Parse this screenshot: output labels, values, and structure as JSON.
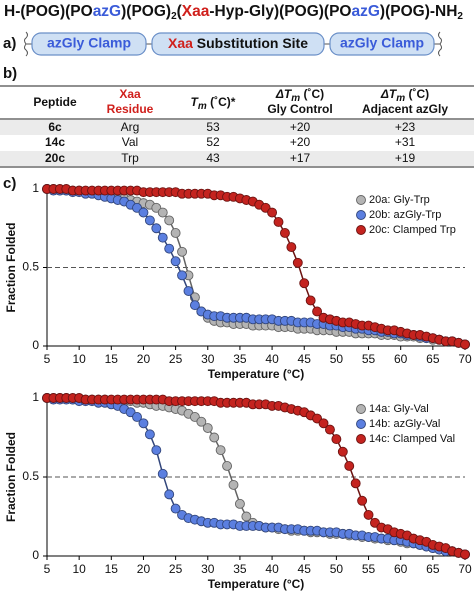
{
  "formula": [
    "H-(POG)(PO",
    "azG",
    ")(POG)",
    "2",
    "(",
    "Xaa",
    "-Hyp-Gly)(POG)(PO",
    "azG",
    ")(POG)-NH",
    "2"
  ],
  "panels": [
    "a)",
    "b)",
    "c)"
  ],
  "diagram": {
    "left": "azGly Clamp",
    "middle": [
      "Xaa",
      " Substitution Site"
    ],
    "right": "azGly Clamp"
  },
  "table": {
    "headers": [
      [
        "Peptide"
      ],
      [
        "Xaa",
        "Residue"
      ],
      [
        "T",
        "m",
        " (˚C)*"
      ],
      [
        "ΔT",
        "m",
        " (˚C)",
        "Gly Control"
      ],
      [
        "ΔT",
        "m",
        " (˚C)",
        "Adjacent azGly"
      ]
    ],
    "rows": [
      [
        "6c",
        "Arg",
        "53",
        "+20",
        "+23"
      ],
      [
        "14c",
        "Val",
        "52",
        "+20",
        "+31"
      ],
      [
        "20c",
        "Trp",
        "43",
        "+17",
        "+19"
      ]
    ]
  },
  "chart_data": [
    {
      "type": "line",
      "markers": true,
      "xlabel": "Temperature (°C)",
      "ylabel": "Fraction Folded",
      "xlim": [
        5,
        70
      ],
      "xticks": [
        5,
        10,
        15,
        20,
        25,
        30,
        35,
        40,
        45,
        50,
        55,
        60,
        65,
        70
      ],
      "ylim": [
        0,
        1
      ],
      "yticks": [
        0,
        0.5,
        1
      ],
      "hline": 0.5,
      "legend": "upper right",
      "x": [
        5,
        6,
        7,
        8,
        9,
        10,
        11,
        12,
        13,
        14,
        15,
        16,
        17,
        18,
        19,
        20,
        21,
        22,
        23,
        24,
        25,
        26,
        27,
        28,
        29,
        30,
        31,
        32,
        33,
        34,
        35,
        36,
        37,
        38,
        39,
        40,
        41,
        42,
        43,
        44,
        45,
        46,
        47,
        48,
        49,
        50,
        51,
        52,
        53,
        54,
        55,
        56,
        57,
        58,
        59,
        60,
        61,
        62,
        63,
        64,
        65,
        66,
        67,
        68,
        69,
        70
      ],
      "series": [
        {
          "name": "20a: Gly-Trp",
          "color": "#b4b4b4",
          "values": [
            1.0,
            1.0,
            0.99,
            0.99,
            0.99,
            0.99,
            0.98,
            0.98,
            0.97,
            0.97,
            0.96,
            0.95,
            0.94,
            0.93,
            0.92,
            0.91,
            0.9,
            0.88,
            0.85,
            0.8,
            0.72,
            0.6,
            0.45,
            0.31,
            0.22,
            0.18,
            0.16,
            0.15,
            0.15,
            0.14,
            0.14,
            0.14,
            0.13,
            0.13,
            0.13,
            0.13,
            0.12,
            0.12,
            0.12,
            0.11,
            0.11,
            0.11,
            0.1,
            0.1,
            0.1,
            0.09,
            0.09,
            0.09,
            0.08,
            0.08,
            0.08,
            0.08,
            0.07,
            0.07,
            0.07,
            0.06,
            0.06,
            0.06,
            0.05,
            0.05,
            0.04,
            0.04,
            0.03,
            0.03,
            0.02,
            0.01
          ]
        },
        {
          "name": "20b: azGly-Trp",
          "color": "#5b7fe0",
          "values": [
            1.0,
            0.99,
            0.99,
            0.99,
            0.98,
            0.98,
            0.97,
            0.97,
            0.96,
            0.95,
            0.94,
            0.93,
            0.92,
            0.9,
            0.88,
            0.85,
            0.8,
            0.75,
            0.69,
            0.62,
            0.54,
            0.45,
            0.35,
            0.26,
            0.22,
            0.2,
            0.19,
            0.19,
            0.18,
            0.18,
            0.18,
            0.18,
            0.17,
            0.17,
            0.17,
            0.17,
            0.16,
            0.16,
            0.16,
            0.15,
            0.15,
            0.15,
            0.14,
            0.14,
            0.13,
            0.13,
            0.12,
            0.12,
            0.11,
            0.11,
            0.1,
            0.1,
            0.09,
            0.09,
            0.08,
            0.08,
            0.07,
            0.07,
            0.06,
            0.05,
            0.05,
            0.04,
            0.03,
            0.03,
            0.02,
            0.01
          ]
        },
        {
          "name": "20c: Clamped Trp",
          "color": "#c4231f",
          "values": [
            1.0,
            1.0,
            1.0,
            1.0,
            0.99,
            0.99,
            0.99,
            0.99,
            0.99,
            0.99,
            0.99,
            0.99,
            0.99,
            0.99,
            0.99,
            0.98,
            0.98,
            0.98,
            0.98,
            0.98,
            0.98,
            0.97,
            0.97,
            0.97,
            0.97,
            0.97,
            0.96,
            0.96,
            0.95,
            0.95,
            0.94,
            0.93,
            0.92,
            0.9,
            0.88,
            0.85,
            0.79,
            0.72,
            0.63,
            0.53,
            0.4,
            0.29,
            0.22,
            0.18,
            0.17,
            0.16,
            0.15,
            0.15,
            0.14,
            0.13,
            0.13,
            0.12,
            0.11,
            0.1,
            0.1,
            0.09,
            0.08,
            0.07,
            0.07,
            0.06,
            0.05,
            0.04,
            0.03,
            0.03,
            0.02,
            0.01
          ]
        }
      ]
    },
    {
      "type": "line",
      "markers": true,
      "xlabel": "Temperature (°C)",
      "ylabel": "Fraction Folded",
      "xlim": [
        5,
        70
      ],
      "xticks": [
        5,
        10,
        15,
        20,
        25,
        30,
        35,
        40,
        45,
        50,
        55,
        60,
        65,
        70
      ],
      "ylim": [
        0,
        1
      ],
      "yticks": [
        0,
        0.5,
        1
      ],
      "hline": 0.5,
      "legend": "upper right",
      "x": [
        5,
        6,
        7,
        8,
        9,
        10,
        11,
        12,
        13,
        14,
        15,
        16,
        17,
        18,
        19,
        20,
        21,
        22,
        23,
        24,
        25,
        26,
        27,
        28,
        29,
        30,
        31,
        32,
        33,
        34,
        35,
        36,
        37,
        38,
        39,
        40,
        41,
        42,
        43,
        44,
        45,
        46,
        47,
        48,
        49,
        50,
        51,
        52,
        53,
        54,
        55,
        56,
        57,
        58,
        59,
        60,
        61,
        62,
        63,
        64,
        65,
        66,
        67,
        68,
        69,
        70
      ],
      "series": [
        {
          "name": "14a: Gly-Val",
          "color": "#b4b4b4",
          "values": [
            1.0,
            1.0,
            1.0,
            1.0,
            0.99,
            0.99,
            0.99,
            0.99,
            0.99,
            0.99,
            0.98,
            0.98,
            0.98,
            0.98,
            0.97,
            0.97,
            0.96,
            0.95,
            0.95,
            0.94,
            0.93,
            0.92,
            0.9,
            0.88,
            0.85,
            0.81,
            0.75,
            0.67,
            0.57,
            0.45,
            0.33,
            0.25,
            0.21,
            0.19,
            0.18,
            0.18,
            0.17,
            0.17,
            0.16,
            0.16,
            0.16,
            0.15,
            0.15,
            0.15,
            0.14,
            0.14,
            0.14,
            0.13,
            0.13,
            0.12,
            0.12,
            0.11,
            0.11,
            0.1,
            0.1,
            0.09,
            0.08,
            0.08,
            0.07,
            0.06,
            0.05,
            0.05,
            0.04,
            0.03,
            0.02,
            0.01
          ]
        },
        {
          "name": "14b: azGly-Val",
          "color": "#5b7fe0",
          "values": [
            1.0,
            0.99,
            0.99,
            0.99,
            0.99,
            0.98,
            0.98,
            0.98,
            0.97,
            0.97,
            0.96,
            0.95,
            0.93,
            0.91,
            0.88,
            0.84,
            0.77,
            0.67,
            0.52,
            0.39,
            0.3,
            0.26,
            0.24,
            0.23,
            0.22,
            0.21,
            0.21,
            0.2,
            0.2,
            0.2,
            0.19,
            0.19,
            0.19,
            0.19,
            0.18,
            0.18,
            0.18,
            0.17,
            0.17,
            0.17,
            0.16,
            0.16,
            0.16,
            0.15,
            0.15,
            0.15,
            0.14,
            0.14,
            0.13,
            0.13,
            0.12,
            0.12,
            0.11,
            0.11,
            0.1,
            0.1,
            0.09,
            0.08,
            0.07,
            0.06,
            0.05,
            0.04,
            0.03,
            0.03,
            0.02,
            0.01
          ]
        },
        {
          "name": "14c: Clamped Val",
          "color": "#c4231f",
          "values": [
            1.0,
            1.0,
            1.0,
            1.0,
            1.0,
            1.0,
            0.99,
            0.99,
            0.99,
            0.99,
            0.99,
            0.99,
            0.99,
            0.99,
            0.99,
            0.99,
            0.99,
            0.99,
            0.99,
            0.98,
            0.98,
            0.98,
            0.98,
            0.98,
            0.98,
            0.98,
            0.98,
            0.97,
            0.97,
            0.97,
            0.97,
            0.97,
            0.96,
            0.96,
            0.96,
            0.95,
            0.95,
            0.94,
            0.93,
            0.92,
            0.91,
            0.89,
            0.87,
            0.84,
            0.8,
            0.74,
            0.66,
            0.57,
            0.46,
            0.35,
            0.26,
            0.21,
            0.18,
            0.17,
            0.15,
            0.14,
            0.13,
            0.11,
            0.1,
            0.09,
            0.07,
            0.06,
            0.05,
            0.03,
            0.02,
            0.01
          ]
        }
      ]
    }
  ]
}
